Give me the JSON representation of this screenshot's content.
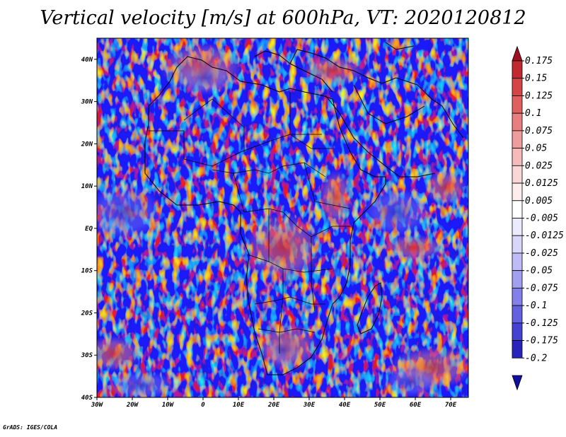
{
  "title": "Vertical velocity [m/s] at 600hPa, VT: 2020120812",
  "credit": "GrADS: IGES/COLA",
  "colors": {
    "field_base": "#b8b4f0",
    "coast": "#000000"
  },
  "chart_data": {
    "type": "heatmap",
    "title": "Vertical velocity [m/s] at 600hPa, VT: 2020120812",
    "variable": "Vertical velocity",
    "units": "m/s",
    "level": "600hPa",
    "valid_time": "2020120812",
    "xlim": [
      -30,
      75
    ],
    "ylim": [
      -40,
      45
    ],
    "x_ticks": [
      {
        "value": -30,
        "label": "30W"
      },
      {
        "value": -20,
        "label": "20W"
      },
      {
        "value": -10,
        "label": "10W"
      },
      {
        "value": 0,
        "label": "0"
      },
      {
        "value": 10,
        "label": "10E"
      },
      {
        "value": 20,
        "label": "20E"
      },
      {
        "value": 30,
        "label": "30E"
      },
      {
        "value": 40,
        "label": "40E"
      },
      {
        "value": 50,
        "label": "50E"
      },
      {
        "value": 60,
        "label": "60E"
      },
      {
        "value": 70,
        "label": "70E"
      }
    ],
    "y_ticks": [
      {
        "value": 40,
        "label": "40N"
      },
      {
        "value": 30,
        "label": "30N"
      },
      {
        "value": 20,
        "label": "20N"
      },
      {
        "value": 10,
        "label": "10N"
      },
      {
        "value": 0,
        "label": "EQ"
      },
      {
        "value": -10,
        "label": "10S"
      },
      {
        "value": -20,
        "label": "20S"
      },
      {
        "value": -30,
        "label": "30S"
      },
      {
        "value": -40,
        "label": "40S"
      }
    ],
    "colorbar": {
      "labels": [
        "0.175",
        "0.15",
        "0.125",
        "0.1",
        "0.075",
        "0.05",
        "0.025",
        "0.0125",
        "0.005",
        "-0.005",
        "-0.0125",
        "-0.025",
        "-0.05",
        "-0.075",
        "-0.1",
        "-0.125",
        "-0.175",
        "-0.2"
      ],
      "colors": [
        "#a01020",
        "#c02a2e",
        "#d44545",
        "#e06060",
        "#e87e7e",
        "#ef9c9c",
        "#f5baba",
        "#fad6d6",
        "#fdeeee",
        "#ffffff",
        "#ecebfd",
        "#d8d6fb",
        "#bebbf6",
        "#a29ff1",
        "#8480ea",
        "#6461e1",
        "#4542d2",
        "#2823bb",
        "#120ea0"
      ]
    }
  }
}
